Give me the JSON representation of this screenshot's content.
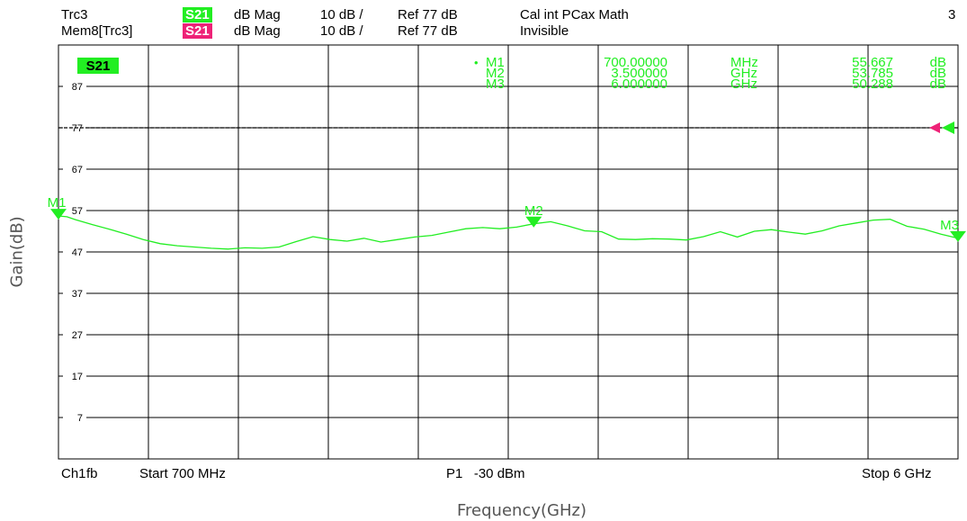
{
  "header": {
    "row1": {
      "trace": "Trc3",
      "param": "S21",
      "format": "dB Mag",
      "scale": "10 dB /",
      "ref": "Ref 77 dB",
      "status": "Cal int PCax Math",
      "channel_count": "3"
    },
    "row2": {
      "trace": "Mem8[Trc3]",
      "param": "S21",
      "format": "dB Mag",
      "scale": "10 dB /",
      "ref": "Ref 77 dB",
      "status": "Invisible"
    }
  },
  "footer": {
    "channel": "Ch1",
    "mode": "fb",
    "start": "Start 700 MHz",
    "power": "P1   -30 dBm",
    "stop": "Stop 6 GHz"
  },
  "colors": {
    "trace": "#22ee22",
    "memory": "#ee2277",
    "grid": "#000000"
  },
  "chart_data": {
    "type": "line",
    "ylabel": "Gain(dB)",
    "xlabel": "Frequency(GHz)",
    "trace_label": "S21",
    "xlim": [
      0.7,
      6.0
    ],
    "ylim": [
      -3,
      97
    ],
    "ref_level": 77,
    "y_ticks": [
      87,
      77,
      67,
      57,
      47,
      37,
      27,
      17,
      7
    ],
    "grid": true,
    "series": [
      {
        "name": "S21",
        "x": [
          0.7,
          0.75,
          0.8,
          0.9,
          1.0,
          1.1,
          1.2,
          1.3,
          1.4,
          1.5,
          1.6,
          1.7,
          1.8,
          1.9,
          2.0,
          2.1,
          2.2,
          2.3,
          2.4,
          2.5,
          2.6,
          2.7,
          2.8,
          2.9,
          3.0,
          3.1,
          3.2,
          3.3,
          3.4,
          3.5,
          3.6,
          3.7,
          3.8,
          3.9,
          4.0,
          4.1,
          4.2,
          4.3,
          4.4,
          4.5,
          4.6,
          4.7,
          4.8,
          4.9,
          5.0,
          5.1,
          5.2,
          5.3,
          5.4,
          5.5,
          5.6,
          5.7,
          5.8,
          5.9,
          6.0
        ],
        "y": [
          55.7,
          55.5,
          54.8,
          53.6,
          52.5,
          51.3,
          50.0,
          49.0,
          48.5,
          48.2,
          47.9,
          47.7,
          48.0,
          47.9,
          48.2,
          49.5,
          50.7,
          50.0,
          49.6,
          50.3,
          49.4,
          50.0,
          50.6,
          51.0,
          51.8,
          52.6,
          52.9,
          52.6,
          53.0,
          53.8,
          54.3,
          53.3,
          52.1,
          51.9,
          50.1,
          50.0,
          50.2,
          50.1,
          49.9,
          50.7,
          51.9,
          50.6,
          52.0,
          52.4,
          51.8,
          51.3,
          52.1,
          53.3,
          54.0,
          54.7,
          54.9,
          53.2,
          52.5,
          51.3,
          50.3
        ]
      }
    ],
    "markers": [
      {
        "label": "M1",
        "x": 0.7,
        "y": 55.667,
        "freq_value": "700.00000",
        "freq_unit": "MHz",
        "gain_value": "55.667",
        "gain_unit": "dB",
        "active": true
      },
      {
        "label": "M2",
        "x": 3.5,
        "y": 53.785,
        "freq_value": "3.500000",
        "freq_unit": "GHz",
        "gain_value": "53.785",
        "gain_unit": "dB",
        "active": false
      },
      {
        "label": "M3",
        "x": 6.0,
        "y": 50.288,
        "freq_value": "6.000000",
        "freq_unit": "GHz",
        "gain_value": "50.288",
        "gain_unit": "dB",
        "active": false
      }
    ]
  }
}
